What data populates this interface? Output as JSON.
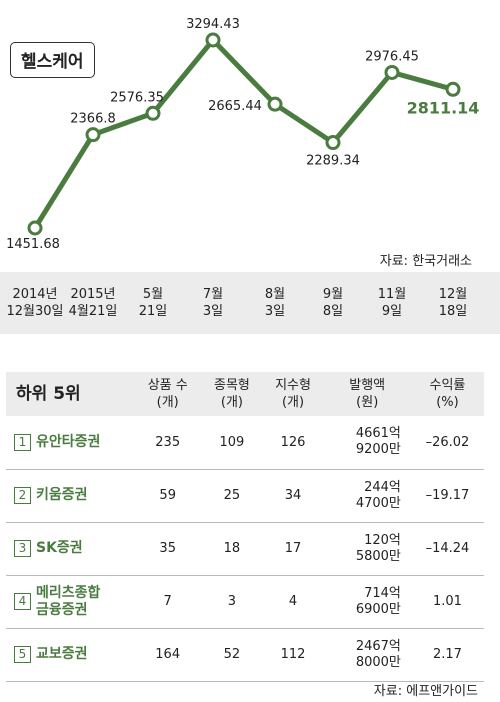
{
  "chart_title": "헬스케어",
  "chart_source": "자료: 한국거래소",
  "chart_data": {
    "type": "line",
    "title": "헬스케어",
    "categories": [
      "2014년\n12월30일",
      "2015년\n4월21일",
      "5월\n21일",
      "7월\n3일",
      "8월\n3일",
      "9월\n8일",
      "11월\n9일",
      "12월\n18일"
    ],
    "values": [
      1451.68,
      2366.8,
      2576.35,
      3294.43,
      2665.44,
      2289.34,
      2976.45,
      2811.14
    ],
    "labels": [
      "1451.68",
      "2366.8",
      "2576.35",
      "3294.43",
      "2665.44",
      "2289.34",
      "2976.45",
      "2811.14"
    ],
    "color": "#4a7c3f",
    "highlight_color": "#4a7c3f",
    "grid": false
  },
  "table": {
    "title": "하위 5위",
    "columns": [
      "상품 수\n(개)",
      "종목형\n(개)",
      "지수형\n(개)",
      "발행액\n(원)",
      "수익률\n(%)"
    ],
    "rows": [
      {
        "rank": "1",
        "name": "유안타증권",
        "products": "235",
        "stock_type": "109",
        "index_type": "126",
        "amount": "4661억\n9200만",
        "return": "–26.02"
      },
      {
        "rank": "2",
        "name": "키움증권",
        "products": "59",
        "stock_type": "25",
        "index_type": "34",
        "amount": "244억\n4700만",
        "return": "–19.17"
      },
      {
        "rank": "3",
        "name": "SK증권",
        "products": "35",
        "stock_type": "18",
        "index_type": "17",
        "amount": "120억\n5800만",
        "return": "–14.24"
      },
      {
        "rank": "4",
        "name": "메리츠종합\n금융증권",
        "products": "7",
        "stock_type": "3",
        "index_type": "4",
        "amount": "714억\n6900만",
        "return": "1.01"
      },
      {
        "rank": "5",
        "name": "교보증권",
        "products": "164",
        "stock_type": "52",
        "index_type": "112",
        "amount": "2467억\n8000만",
        "return": "2.17"
      }
    ],
    "source": "자료: 에프앤가이드"
  }
}
